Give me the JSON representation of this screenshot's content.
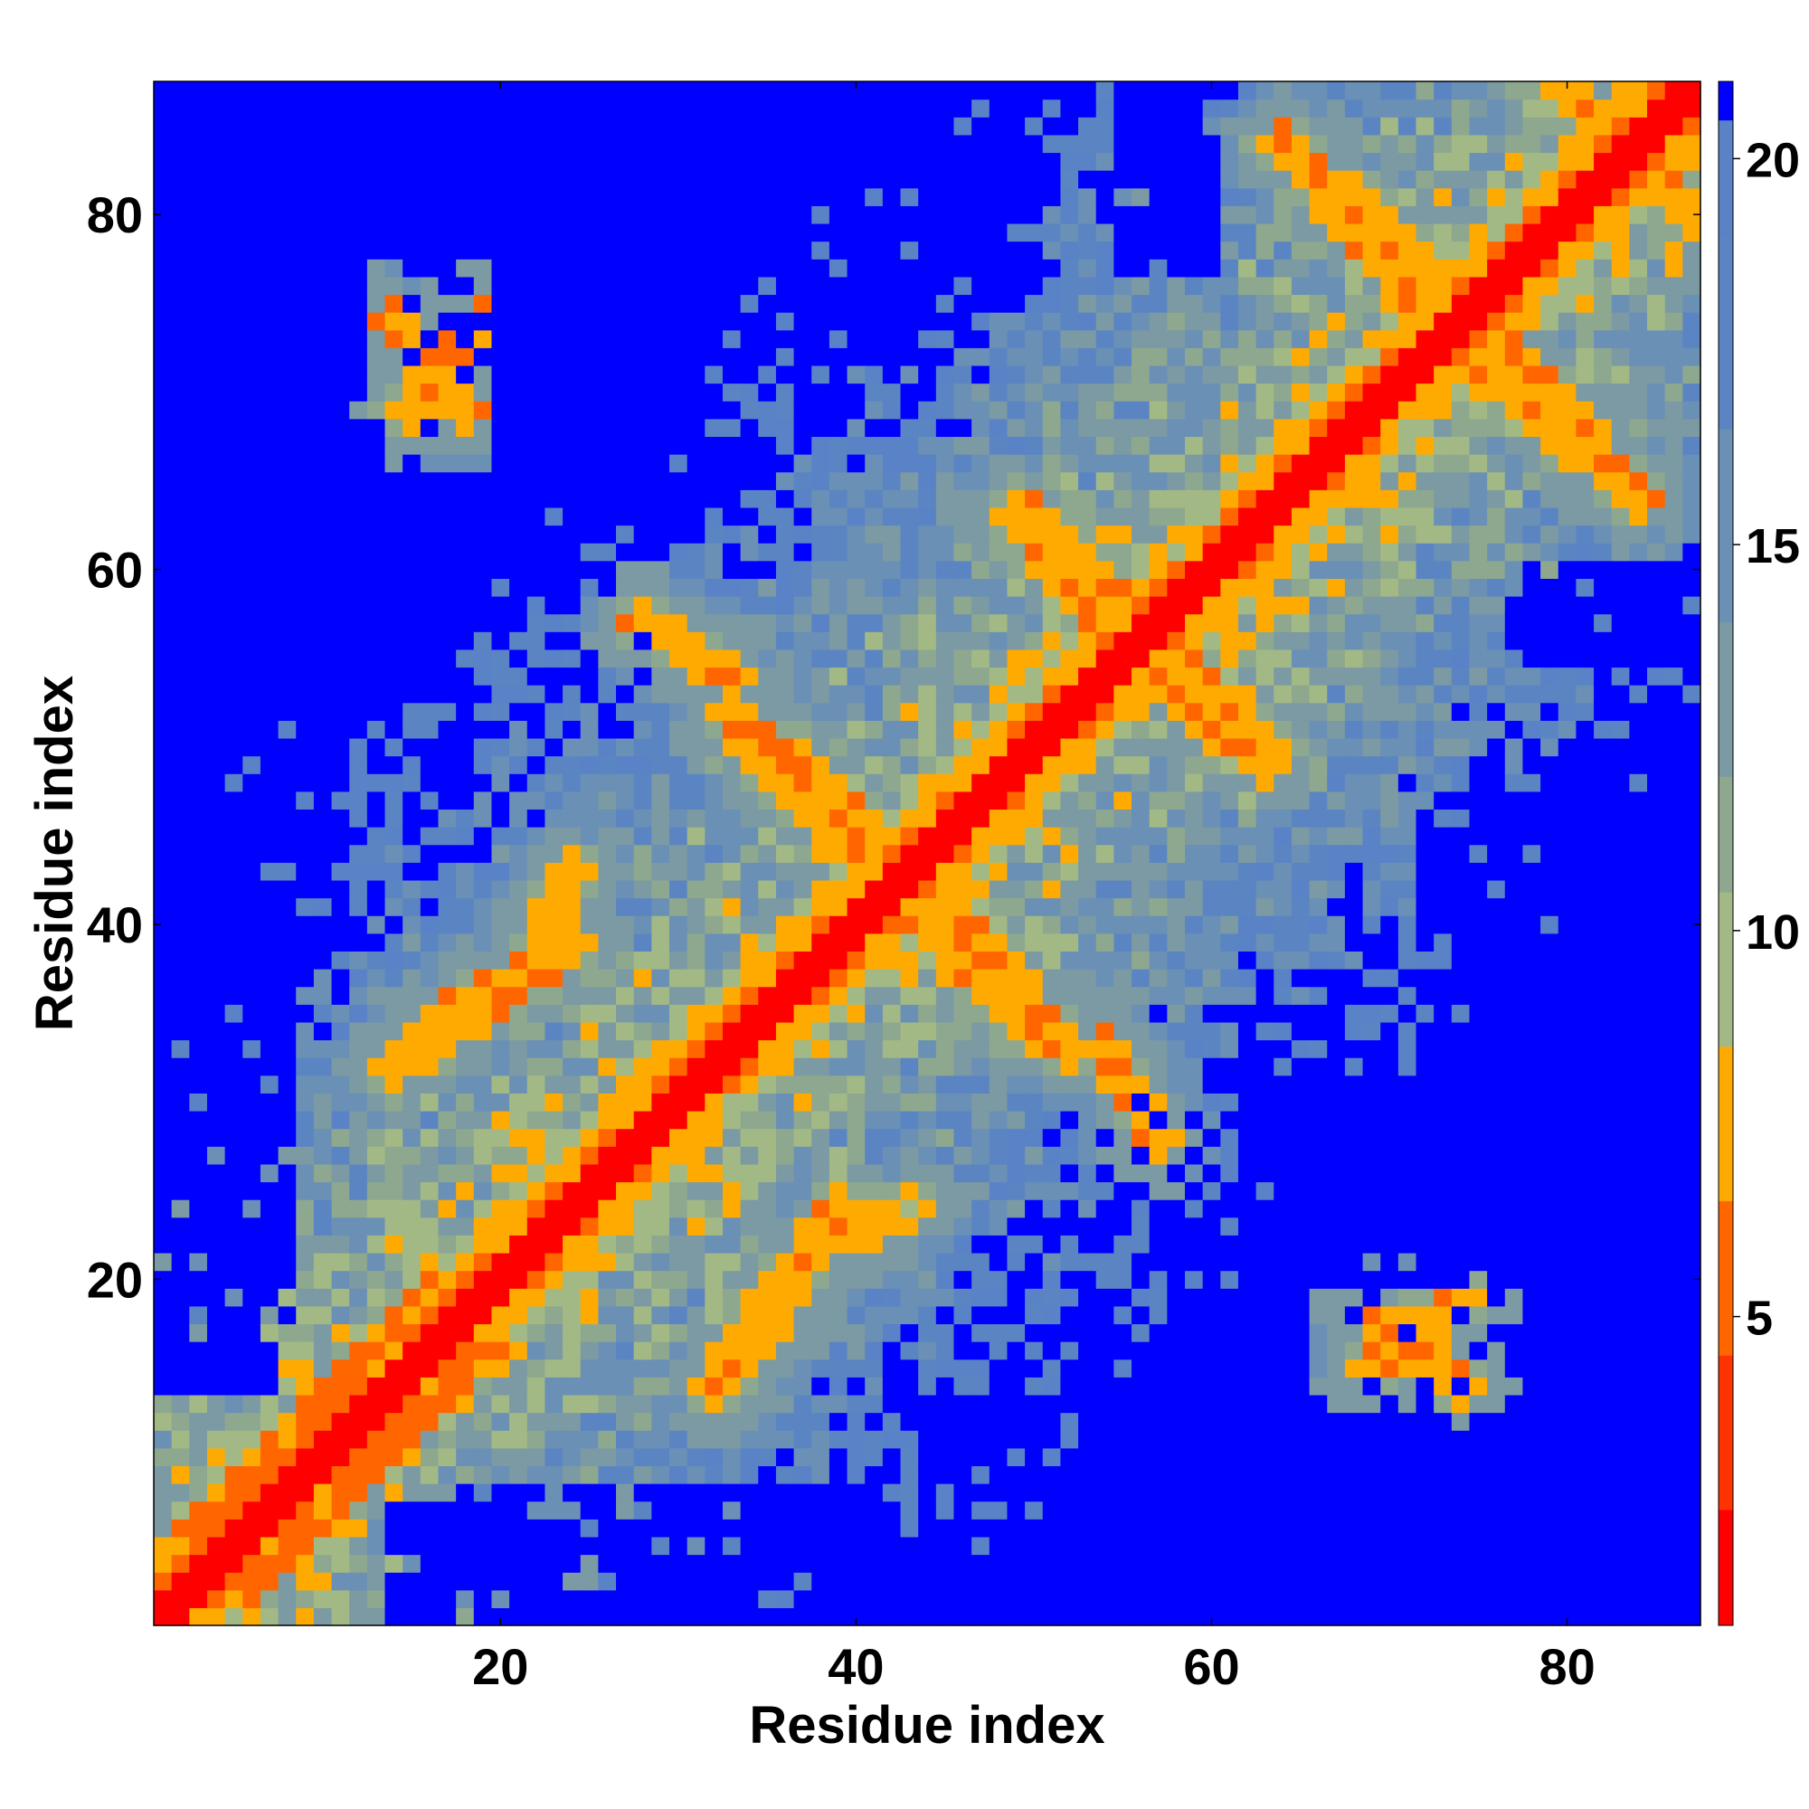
{
  "chart_data": {
    "type": "heatmap",
    "title": "",
    "xlabel": "Residue index",
    "ylabel": "Residue index",
    "xlim": [
      0.5,
      87.5
    ],
    "ylim": [
      0.5,
      87.5
    ],
    "n_residues": 87,
    "x_ticks": [
      20,
      40,
      60,
      80
    ],
    "y_ticks": [
      20,
      40,
      60,
      80
    ],
    "colorbar": {
      "ticks": [
        5,
        10,
        15,
        20
      ],
      "range": [
        1,
        21
      ],
      "levels": [
        {
          "max": 2.5,
          "color": "#ff0000"
        },
        {
          "max": 4.5,
          "color": "#ff3300"
        },
        {
          "max": 6.5,
          "color": "#ff6600"
        },
        {
          "max": 8.5,
          "color": "#ffaa00"
        },
        {
          "max": 10.5,
          "color": "#a3b985"
        },
        {
          "max": 12.0,
          "color": "#8ea88f"
        },
        {
          "max": 14.0,
          "color": "#7b9aa3"
        },
        {
          "max": 16.5,
          "color": "#6a90b6"
        },
        {
          "max": 19.0,
          "color": "#5b85c2"
        },
        {
          "max": 20.5,
          "color": "#5a82c6"
        },
        {
          "max": 99,
          "color": "#0000ff"
        }
      ]
    },
    "diagonal_value": 1,
    "far_value": 21,
    "contact_segments": [
      {
        "from": [
          3,
          6
        ],
        "to": [
          16,
          19
        ],
        "value": 5
      },
      {
        "from": [
          6,
          3
        ],
        "to": [
          19,
          16
        ],
        "value": 5
      },
      {
        "from": [
          14,
          74
        ],
        "to": [
          18,
          69
        ],
        "value": 6
      },
      {
        "from": [
          16,
          34
        ],
        "to": [
          24,
          39
        ],
        "value": 6
      },
      {
        "from": [
          28,
          57
        ],
        "to": [
          33,
          54
        ],
        "value": 6
      },
      {
        "from": [
          33,
          52
        ],
        "to": [
          41,
          45
        ],
        "value": 6
      },
      {
        "from": [
          32,
          14
        ],
        "to": [
          36,
          20
        ],
        "value": 6
      },
      {
        "from": [
          38,
          22
        ],
        "to": [
          43,
          24
        ],
        "value": 7
      },
      {
        "from": [
          44,
          40
        ],
        "to": [
          50,
          34
        ],
        "value": 6
      },
      {
        "from": [
          50,
          63
        ],
        "to": [
          58,
          55
        ],
        "value": 6
      },
      {
        "from": [
          55,
          55
        ],
        "to": [
          63,
          49
        ],
        "value": 6
      },
      {
        "from": [
          64,
          84
        ],
        "to": [
          73,
          76
        ],
        "value": 6
      },
      {
        "from": [
          73,
          73
        ],
        "to": [
          83,
          65
        ],
        "value": 6
      },
      {
        "from": [
          69,
          15
        ],
        "to": [
          74,
          19
        ],
        "value": 6
      },
      {
        "from": [
          82,
          84
        ],
        "to": [
          87,
          80
        ],
        "value": 6
      }
    ],
    "far_blocks": [
      {
        "x": [
          1,
          12
        ],
        "y": [
          60,
          87
        ]
      },
      {
        "x": [
          1,
          8
        ],
        "y": [
          18,
          42
        ]
      },
      {
        "x": [
          20,
          31
        ],
        "y": [
          62,
          87
        ]
      },
      {
        "x": [
          40,
          45
        ],
        "y": [
          72,
          87
        ]
      },
      {
        "x": [
          14,
          25
        ],
        "y": [
          1,
          7
        ]
      },
      {
        "x": [
          36,
          44
        ],
        "y": [
          1,
          6
        ]
      },
      {
        "x": [
          73,
          87
        ],
        "y": [
          1,
          12
        ]
      },
      {
        "x": [
          66,
          87
        ],
        "y": [
          22,
          30
        ]
      },
      {
        "x": [
          75,
          87
        ],
        "y": [
          40,
          50
        ]
      },
      {
        "x": [
          77,
          87
        ],
        "y": [
          55,
          60
        ]
      }
    ]
  }
}
